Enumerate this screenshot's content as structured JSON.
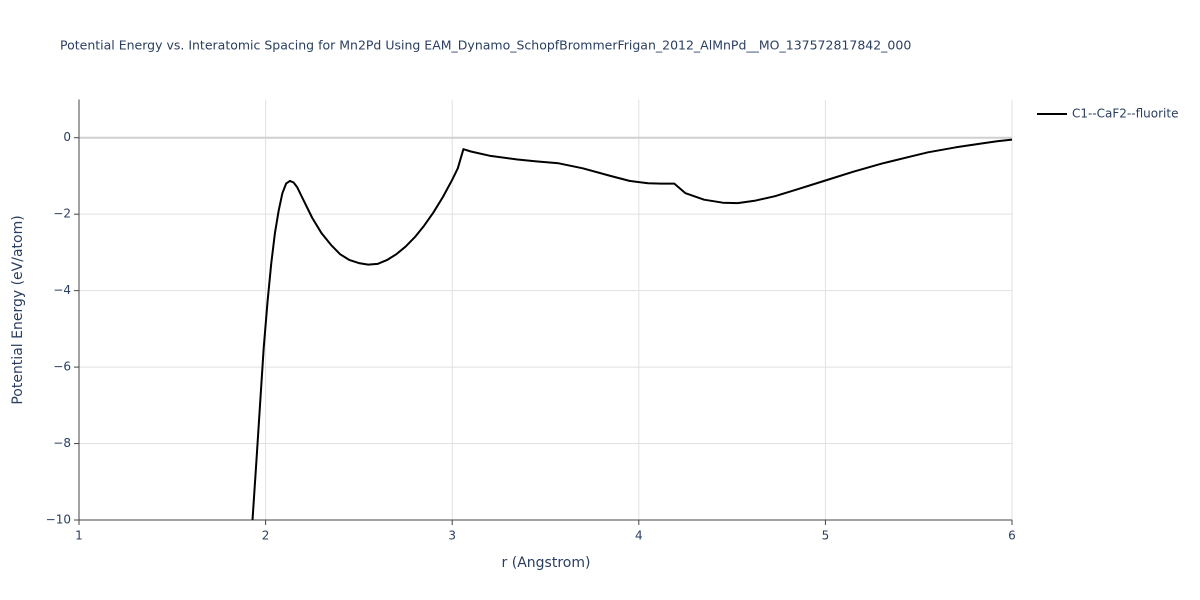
{
  "chart_data": {
    "type": "line",
    "title": "Potential Energy vs. Interatomic Spacing for Mn2Pd Using EAM_Dynamo_SchopfBrommerFrigan_2012_AlMnPd__MO_137572817842_000",
    "xlabel": "r (Angstrom)",
    "ylabel": "Potential Energy (eV/atom)",
    "xlim": [
      1,
      6
    ],
    "ylim": [
      -10,
      1
    ],
    "xticks": [
      1,
      2,
      3,
      4,
      5,
      6
    ],
    "yticks": [
      {
        "value": -10,
        "label": "−10"
      },
      {
        "value": -8,
        "label": "−8"
      },
      {
        "value": -6,
        "label": "−6"
      },
      {
        "value": -4,
        "label": "−4"
      },
      {
        "value": -2,
        "label": "−2"
      },
      0
    ],
    "grid": true,
    "legend": "top-right",
    "series": [
      {
        "name": "C1--CaF2--fluorite",
        "color": "#000000",
        "x": [
          1.93,
          1.95,
          1.97,
          1.99,
          2.01,
          2.03,
          2.05,
          2.07,
          2.09,
          2.11,
          2.13,
          2.15,
          2.17,
          2.2,
          2.25,
          2.3,
          2.35,
          2.4,
          2.45,
          2.5,
          2.55,
          2.6,
          2.65,
          2.7,
          2.75,
          2.8,
          2.85,
          2.9,
          2.95,
          3.0,
          3.03,
          3.06,
          3.1,
          3.2,
          3.35,
          3.45,
          3.57,
          3.7,
          3.85,
          3.95,
          4.05,
          4.12,
          4.19,
          4.25,
          4.35,
          4.45,
          4.53,
          4.62,
          4.73,
          4.85,
          5.0,
          5.15,
          5.3,
          5.45,
          5.55,
          5.7,
          5.85,
          5.92,
          6.0
        ],
        "values": [
          -10,
          -8.5,
          -7,
          -5.5,
          -4.3,
          -3.3,
          -2.5,
          -1.9,
          -1.45,
          -1.2,
          -1.13,
          -1.17,
          -1.3,
          -1.6,
          -2.1,
          -2.5,
          -2.8,
          -3.05,
          -3.2,
          -3.28,
          -3.32,
          -3.3,
          -3.2,
          -3.05,
          -2.85,
          -2.6,
          -2.3,
          -1.95,
          -1.55,
          -1.1,
          -0.8,
          -0.3,
          -0.36,
          -0.47,
          -0.57,
          -0.62,
          -0.67,
          -0.8,
          -1.0,
          -1.13,
          -1.19,
          -1.2,
          -1.2,
          -1.45,
          -1.62,
          -1.7,
          -1.71,
          -1.65,
          -1.53,
          -1.35,
          -1.12,
          -0.89,
          -0.68,
          -0.5,
          -0.38,
          -0.25,
          -0.14,
          -0.09,
          -0.05
        ]
      }
    ]
  }
}
